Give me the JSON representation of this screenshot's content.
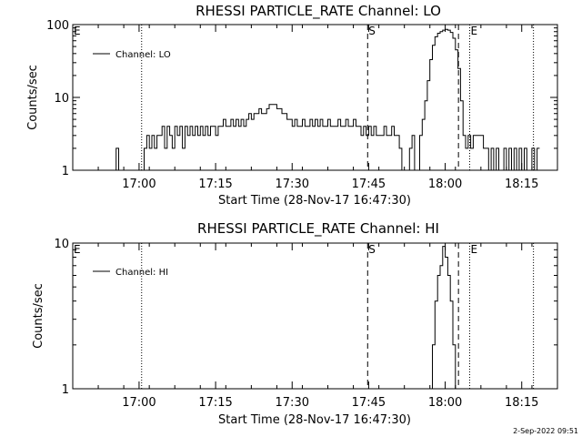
{
  "footer": {
    "timestamp": "2-Sep-2022 09:51"
  },
  "chart_data": [
    {
      "type": "line",
      "title": "RHESSI PARTICLE_RATE Channel: LO",
      "xlabel": "Start Time (28-Nov-17 16:47:30)",
      "ylabel": "Counts/sec",
      "y_scale": "log",
      "ylim": [
        1,
        100
      ],
      "y_ticks": [
        {
          "value": 1,
          "label": "1"
        },
        {
          "value": 10,
          "label": "10"
        },
        {
          "value": 100,
          "label": "100"
        }
      ],
      "xlim_minutes": [
        0,
        95
      ],
      "x_ticks": [
        {
          "value": 13,
          "label": "17:00"
        },
        {
          "value": 28,
          "label": "17:15"
        },
        {
          "value": 43,
          "label": "17:30"
        },
        {
          "value": 58,
          "label": "17:45"
        },
        {
          "value": 73,
          "label": "18:00"
        },
        {
          "value": 88,
          "label": "18:15"
        }
      ],
      "legend": {
        "label": "Channel: LO",
        "placement": "top-left"
      },
      "markers": [
        {
          "label": "E",
          "x": 0,
          "style": "none"
        },
        {
          "label": "S",
          "x": 57.8,
          "style": "dashed"
        },
        {
          "label": "",
          "x": 75.6,
          "style": "dashed"
        },
        {
          "label": "E",
          "x": 77.8,
          "style": "dotted"
        }
      ],
      "extra_dotted_lines": [
        13.5,
        90.3
      ],
      "series": [
        {
          "name": "Channel: LO",
          "points": [
            [
              8,
              1
            ],
            [
              8.5,
              2
            ],
            [
              9,
              1
            ],
            [
              13.5,
              1
            ],
            [
              14,
              2
            ],
            [
              14.5,
              3
            ],
            [
              15,
              2
            ],
            [
              15.5,
              3
            ],
            [
              16,
              2
            ],
            [
              16.5,
              3
            ],
            [
              17,
              3
            ],
            [
              17.5,
              4
            ],
            [
              18,
              2
            ],
            [
              18.5,
              4
            ],
            [
              19,
              3
            ],
            [
              19.5,
              2
            ],
            [
              20,
              4
            ],
            [
              20.5,
              3
            ],
            [
              21,
              4
            ],
            [
              21.5,
              2
            ],
            [
              22,
              4
            ],
            [
              22.5,
              3
            ],
            [
              23,
              4
            ],
            [
              23.5,
              3
            ],
            [
              24,
              4
            ],
            [
              24.5,
              3
            ],
            [
              25,
              4
            ],
            [
              25.5,
              3
            ],
            [
              26,
              4
            ],
            [
              26.5,
              3
            ],
            [
              27,
              4
            ],
            [
              27.5,
              4
            ],
            [
              28,
              3
            ],
            [
              28.5,
              4
            ],
            [
              29,
              4
            ],
            [
              29.5,
              5
            ],
            [
              30,
              4
            ],
            [
              30.5,
              4
            ],
            [
              31,
              5
            ],
            [
              31.5,
              4
            ],
            [
              32,
              5
            ],
            [
              32.5,
              4
            ],
            [
              33,
              5
            ],
            [
              33.5,
              4
            ],
            [
              34,
              5
            ],
            [
              34.5,
              6
            ],
            [
              35,
              5
            ],
            [
              35.5,
              6
            ],
            [
              36,
              6
            ],
            [
              36.5,
              7
            ],
            [
              37,
              6
            ],
            [
              37.5,
              6
            ],
            [
              38,
              7
            ],
            [
              38.5,
              8
            ],
            [
              39,
              8
            ],
            [
              39.5,
              8
            ],
            [
              40,
              7
            ],
            [
              40.5,
              7
            ],
            [
              41,
              6
            ],
            [
              41.5,
              6
            ],
            [
              42,
              5
            ],
            [
              42.5,
              5
            ],
            [
              43,
              4
            ],
            [
              43.5,
              5
            ],
            [
              44,
              4
            ],
            [
              44.5,
              4
            ],
            [
              45,
              5
            ],
            [
              45.5,
              4
            ],
            [
              46,
              4
            ],
            [
              46.5,
              5
            ],
            [
              47,
              4
            ],
            [
              47.5,
              5
            ],
            [
              48,
              4
            ],
            [
              48.5,
              5
            ],
            [
              49,
              4
            ],
            [
              49.5,
              4
            ],
            [
              50,
              5
            ],
            [
              50.5,
              4
            ],
            [
              51,
              4
            ],
            [
              51.5,
              4
            ],
            [
              52,
              5
            ],
            [
              52.5,
              4
            ],
            [
              53,
              4
            ],
            [
              53.5,
              5
            ],
            [
              54,
              4
            ],
            [
              54.5,
              4
            ],
            [
              55,
              5
            ],
            [
              55.5,
              4
            ],
            [
              56,
              4
            ],
            [
              56.5,
              3
            ],
            [
              57,
              4
            ],
            [
              57.5,
              3
            ],
            [
              58,
              4
            ],
            [
              58.5,
              3
            ],
            [
              59,
              4
            ],
            [
              59.5,
              3
            ],
            [
              60,
              3
            ],
            [
              60.5,
              3
            ],
            [
              61,
              4
            ],
            [
              61.5,
              3
            ],
            [
              62,
              3
            ],
            [
              62.5,
              4
            ],
            [
              63,
              3
            ],
            [
              63.5,
              3
            ],
            [
              64,
              2
            ],
            [
              66,
              2
            ],
            [
              66.5,
              3
            ],
            [
              68,
              3
            ],
            [
              68.5,
              5
            ],
            [
              69,
              9
            ],
            [
              69.5,
              17
            ],
            [
              70,
              33
            ],
            [
              70.5,
              52
            ],
            [
              71,
              68
            ],
            [
              71.5,
              76
            ],
            [
              72,
              80
            ],
            [
              72.5,
              84
            ],
            [
              73,
              86
            ],
            [
              73.5,
              84
            ],
            [
              74,
              78
            ],
            [
              74.5,
              65
            ],
            [
              75,
              45
            ],
            [
              75.5,
              25
            ],
            [
              76,
              9
            ],
            [
              76.5,
              3
            ],
            [
              77,
              2
            ],
            [
              77.5,
              3
            ],
            [
              78,
              2
            ],
            [
              78.5,
              3
            ],
            [
              79,
              3
            ],
            [
              79.5,
              3
            ],
            [
              80,
              3
            ],
            [
              80.5,
              2
            ],
            [
              81,
              2
            ],
            [
              81.5,
              1
            ],
            [
              82,
              2
            ],
            [
              82.5,
              1
            ],
            [
              83,
              2
            ],
            [
              83.5,
              1
            ],
            [
              84,
              1
            ],
            [
              84.5,
              2
            ],
            [
              85,
              1
            ],
            [
              85.5,
              2
            ],
            [
              86,
              1
            ],
            [
              86.5,
              2
            ],
            [
              87,
              1
            ],
            [
              87.5,
              2
            ],
            [
              88,
              1
            ],
            [
              88.5,
              2
            ],
            [
              89,
              1
            ],
            [
              89.5,
              1
            ],
            [
              90,
              2
            ],
            [
              90.5,
              1
            ],
            [
              91,
              2
            ]
          ]
        }
      ]
    },
    {
      "type": "line",
      "title": "RHESSI PARTICLE_RATE Channel: HI",
      "xlabel": "Start Time (28-Nov-17 16:47:30)",
      "ylabel": "Counts/sec",
      "y_scale": "log",
      "ylim": [
        1,
        10
      ],
      "y_ticks": [
        {
          "value": 1,
          "label": "1"
        },
        {
          "value": 10,
          "label": "10"
        }
      ],
      "xlim_minutes": [
        0,
        95
      ],
      "x_ticks": [
        {
          "value": 13,
          "label": "17:00"
        },
        {
          "value": 28,
          "label": "17:15"
        },
        {
          "value": 43,
          "label": "17:30"
        },
        {
          "value": 58,
          "label": "17:45"
        },
        {
          "value": 73,
          "label": "18:00"
        },
        {
          "value": 88,
          "label": "18:15"
        }
      ],
      "legend": {
        "label": "Channel: HI",
        "placement": "top-left"
      },
      "markers": [
        {
          "label": "E",
          "x": 0,
          "style": "none"
        },
        {
          "label": "S",
          "x": 57.8,
          "style": "dashed"
        },
        {
          "label": "",
          "x": 75.6,
          "style": "dashed"
        },
        {
          "label": "E",
          "x": 77.8,
          "style": "dotted"
        }
      ],
      "extra_dotted_lines": [
        13.5,
        90.3
      ],
      "series": [
        {
          "name": "Channel: HI",
          "points": [
            [
              70,
              1
            ],
            [
              70.5,
              2
            ],
            [
              71,
              4
            ],
            [
              71.5,
              6
            ],
            [
              72,
              7
            ],
            [
              72.5,
              9.5
            ],
            [
              73,
              8
            ],
            [
              73.5,
              6
            ],
            [
              74,
              4
            ],
            [
              74.5,
              2
            ],
            [
              75,
              1
            ]
          ]
        }
      ]
    }
  ]
}
